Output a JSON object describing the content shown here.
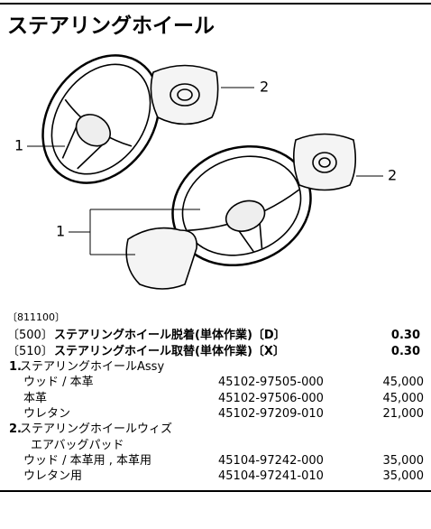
{
  "header": {
    "title": "ステアリングホイール"
  },
  "illustration": {
    "callouts": [
      "1",
      "2",
      "1",
      "2"
    ]
  },
  "section": {
    "code": "〔811100〕",
    "labor": [
      {
        "code": "〔500〕",
        "name": "ステアリングホイール脱着(単体作業)〔D〕",
        "hours": "0.30"
      },
      {
        "code": "〔510〕",
        "name": "ステアリングホイール取替(単体作業)〔X〕",
        "hours": "0.30"
      }
    ],
    "groups": [
      {
        "number": "1.",
        "label_lines": [
          "ステアリングホイールAssy"
        ],
        "parts": [
          {
            "name": "ウッド / 本革",
            "part_number": "45102-97505-000",
            "price": "45,000"
          },
          {
            "name": "本革",
            "part_number": "45102-97506-000",
            "price": "45,000"
          },
          {
            "name": "ウレタン",
            "part_number": "45102-97209-010",
            "price": "21,000"
          }
        ]
      },
      {
        "number": "2.",
        "label_lines": [
          "ステアリングホイールウィズ",
          "エアバッグパッド"
        ],
        "parts": [
          {
            "name": "ウッド / 本革用 , 本革用",
            "part_number": "45104-97242-000",
            "price": "35,000"
          },
          {
            "name": "ウレタン用",
            "part_number": "45104-97241-010",
            "price": "35,000"
          }
        ]
      }
    ]
  }
}
